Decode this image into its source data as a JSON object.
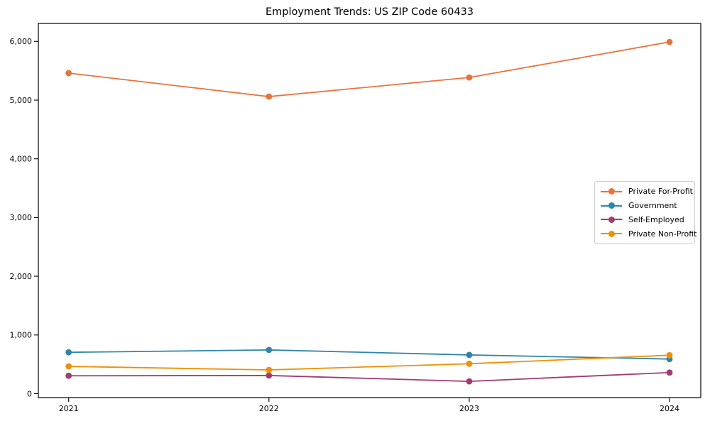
{
  "title": "Employment Trends: US ZIP Code 60433",
  "chart_data": {
    "type": "line",
    "title": "Employment Trends: US ZIP Code 60433",
    "xlabel": "",
    "ylabel": "",
    "x": [
      2021,
      2022,
      2023,
      2024
    ],
    "x_tick_labels": [
      "2021",
      "2022",
      "2023",
      "2024"
    ],
    "yticks": [
      {
        "value": 0,
        "label": "0"
      },
      {
        "value": 1000,
        "label": "1,000"
      },
      {
        "value": 2000,
        "label": "2,000"
      },
      {
        "value": 3000,
        "label": "3,000"
      },
      {
        "value": 4000,
        "label": "4,000"
      },
      {
        "value": 5000,
        "label": "5,000"
      },
      {
        "value": 6000,
        "label": "6,000"
      }
    ],
    "ylim": [
      -66,
      6307
    ],
    "grid": false,
    "marker": "o",
    "legend_position": "center right",
    "series": [
      {
        "name": "Private For-Profit",
        "color": "#E8743B",
        "values": [
          5460,
          5060,
          5385,
          5990
        ]
      },
      {
        "name": "Government",
        "color": "#2E86AB",
        "values": [
          705,
          745,
          660,
          590
        ]
      },
      {
        "name": "Self-Employed",
        "color": "#A23B72",
        "values": [
          305,
          310,
          210,
          360
        ]
      },
      {
        "name": "Private Non-Profit",
        "color": "#F18F01",
        "values": [
          465,
          405,
          510,
          655
        ]
      }
    ]
  }
}
